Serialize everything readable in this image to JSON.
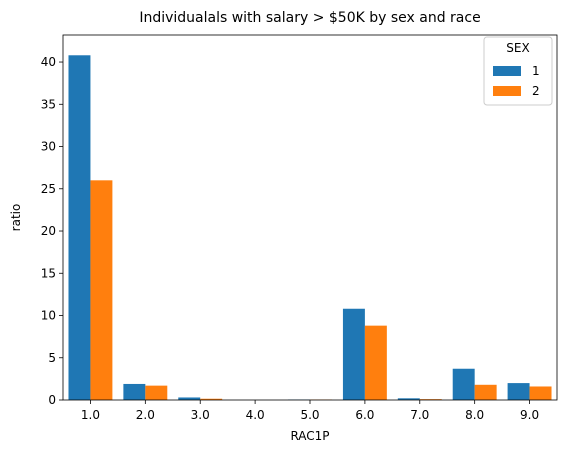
{
  "chart_data": {
    "type": "bar",
    "title": "Individualals with salary > $50K by sex and race",
    "xlabel": "RAC1P",
    "ylabel": "ratio",
    "categories": [
      "1.0",
      "2.0",
      "3.0",
      "4.0",
      "5.0",
      "6.0",
      "7.0",
      "8.0",
      "9.0"
    ],
    "series": [
      {
        "name": "1",
        "color": "#1f77b4",
        "values": [
          40.8,
          1.9,
          0.3,
          0.0,
          0.05,
          10.8,
          0.2,
          3.7,
          2.0
        ]
      },
      {
        "name": "2",
        "color": "#ff7f0e",
        "values": [
          26.0,
          1.7,
          0.15,
          0.0,
          0.05,
          8.8,
          0.1,
          1.8,
          1.6
        ]
      }
    ],
    "yticks": [
      0,
      5,
      10,
      15,
      20,
      25,
      30,
      35,
      40
    ],
    "ylim": [
      0,
      43.2
    ],
    "grid": false,
    "legend": {
      "title": "SEX",
      "placement": "top-right"
    }
  }
}
